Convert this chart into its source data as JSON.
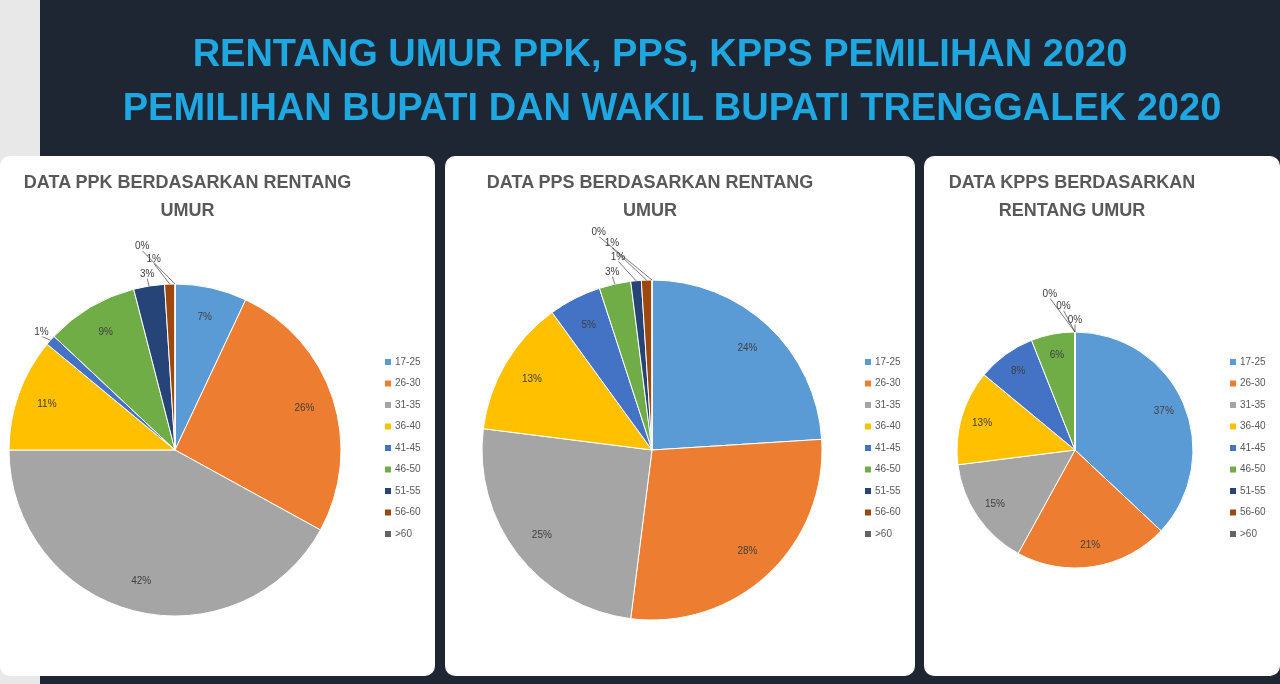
{
  "chart_data": [
    {
      "type": "other",
      "title": "RENTANG UMUR PPK, PPS, KPPS PEMILIHAN 2020",
      "subtitle": "PEMILIHAN BUPATI DAN WAKIL BUPATI TRENGGALEK 2020"
    },
    {
      "type": "pie",
      "title": "DATA PPK BERDASARKAN RENTANG UMUR",
      "categories": [
        "17-25",
        "26-30",
        "31-35",
        "36-40",
        "41-45",
        "46-50",
        "51-55",
        "56-60",
        ">60"
      ],
      "values": [
        7,
        26,
        42,
        11,
        1,
        9,
        3,
        1,
        0
      ],
      "value_labels": [
        "7%",
        "26%",
        "42%",
        "11%",
        "1%",
        "9%",
        "3%",
        "1%",
        "0%"
      ],
      "colors": [
        "#5b9bd5",
        "#ed7d31",
        "#a5a5a5",
        "#ffc000",
        "#4472c4",
        "#70ad47",
        "#264478",
        "#9e480e",
        "#636363"
      ],
      "legend": "right"
    },
    {
      "type": "pie",
      "title": "DATA PPS BERDASARKAN RENTANG UMUR",
      "categories": [
        "17-25",
        "26-30",
        "31-35",
        "36-40",
        "41-45",
        "46-50",
        "51-55",
        "56-60",
        ">60"
      ],
      "values": [
        24,
        28,
        25,
        13,
        5,
        3,
        1,
        1,
        0
      ],
      "value_labels": [
        "24%",
        "28%",
        "25%",
        "13%",
        "5%",
        "3%",
        "1%",
        "1%",
        "0%"
      ],
      "colors": [
        "#5b9bd5",
        "#ed7d31",
        "#a5a5a5",
        "#ffc000",
        "#4472c4",
        "#70ad47",
        "#264478",
        "#9e480e",
        "#636363"
      ],
      "legend": "right"
    },
    {
      "type": "pie",
      "title": "DATA KPPS BERDASARKAN RENTANG UMUR",
      "categories": [
        "17-25",
        "26-30",
        "31-35",
        "36-40",
        "41-45",
        "46-50",
        "51-55",
        "56-60",
        ">60"
      ],
      "values": [
        37,
        21,
        15,
        13,
        8,
        6,
        0,
        0,
        0
      ],
      "value_labels": [
        "37%",
        "21%",
        "15%",
        "13%",
        "8%",
        "6%",
        "0%",
        "0%",
        "0%"
      ],
      "colors": [
        "#5b9bd5",
        "#ed7d31",
        "#a5a5a5",
        "#ffc000",
        "#4472c4",
        "#70ad47",
        "#264478",
        "#9e480e",
        "#636363"
      ],
      "legend": "right"
    }
  ]
}
